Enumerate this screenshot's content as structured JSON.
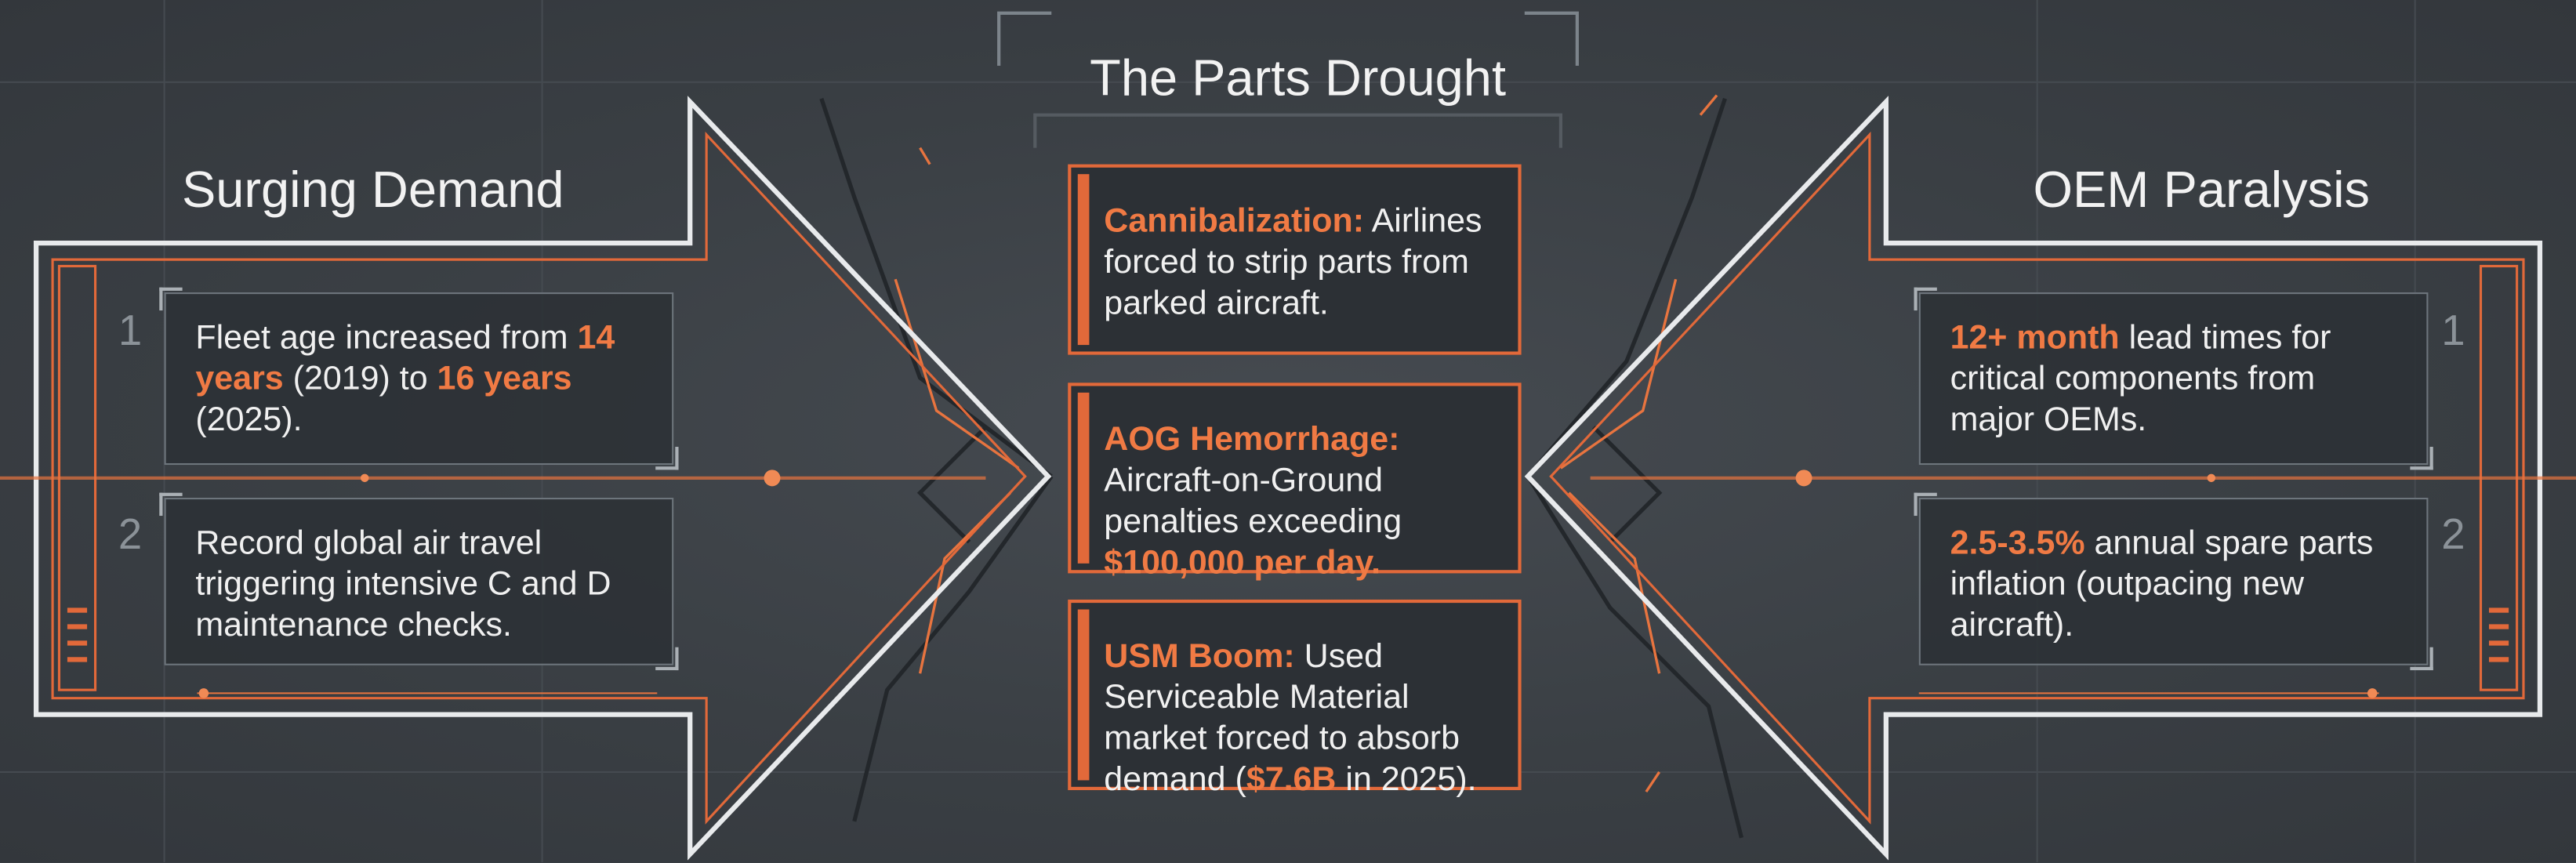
{
  "title": "The Parts Drought",
  "left": {
    "title": "Surging Demand",
    "items": [
      {
        "number": "1",
        "text": [
          "Fleet age increased from ",
          {
            "text": "14 years",
            "accent": true
          },
          " (2019) to ",
          {
            "text": "16 years",
            "accent": true
          },
          " (2025)."
        ]
      },
      {
        "number": "2",
        "text": [
          "Record global air travel triggering intensive C and D maintenance checks."
        ]
      }
    ]
  },
  "right": {
    "title": "OEM Paralysis",
    "items": [
      {
        "number": "1",
        "text": [
          {
            "text": "12+ month",
            "accent": true
          },
          " lead times for critical components from major OEMs."
        ]
      },
      {
        "number": "2",
        "text": [
          {
            "text": "2.5-3.5%",
            "accent": true
          },
          " annual spare parts inflation (outpacing new aircraft)."
        ]
      }
    ]
  },
  "center": {
    "cards": [
      {
        "text": [
          {
            "text": "Cannibalization:",
            "accent": true
          },
          " Airlines forced to strip parts from parked aircraft."
        ]
      },
      {
        "text": [
          {
            "text": "AOG Hemorrhage:",
            "accent": true
          },
          " Aircraft-on-Ground penalties exceeding ",
          {
            "text": "$100,000 per day.",
            "accent": true
          }
        ]
      },
      {
        "text": [
          {
            "text": "USM Boom:",
            "accent": true
          },
          " Used Serviceable Material market forced to absorb demand (",
          {
            "text": "$7.6B",
            "accent": true
          },
          " in 2025)."
        ]
      }
    ]
  }
}
